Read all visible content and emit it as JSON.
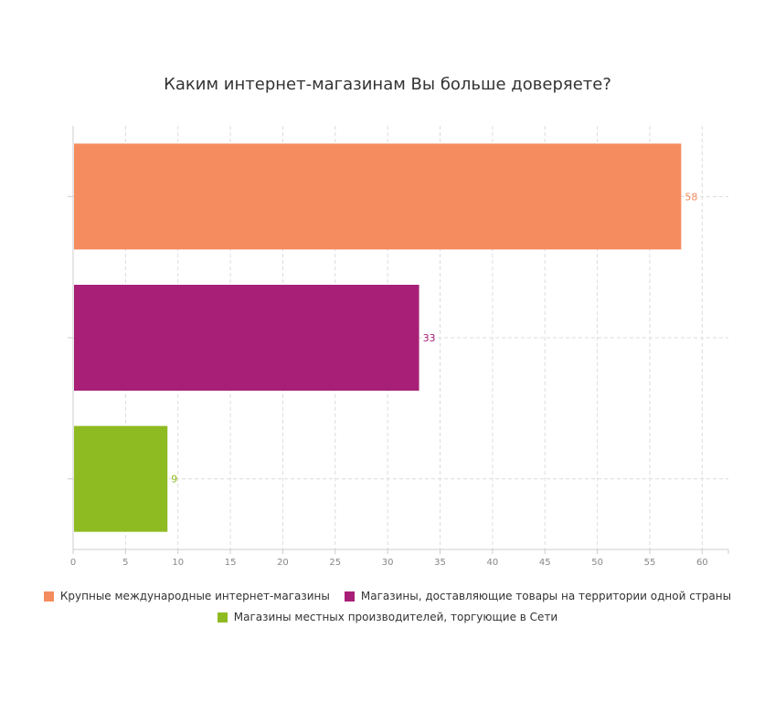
{
  "chart_data": {
    "type": "bar",
    "orientation": "horizontal",
    "title": "Каким интернет-магазинам Вы больше доверяете?",
    "xlim": [
      0,
      62.5
    ],
    "x_ticks": [
      0,
      5,
      10,
      15,
      20,
      25,
      30,
      35,
      40,
      45,
      50,
      55,
      60
    ],
    "grid": true,
    "legend_position": "bottom",
    "series": [
      {
        "name": "Крупные международные интернет-магазины",
        "value": 58,
        "color": "#f58c5f"
      },
      {
        "name": "Магазины, доставляющие товары на территории одной страны",
        "value": 33,
        "color": "#a71f76"
      },
      {
        "name": "Магазины местных производителей, торгующие в Сети",
        "value": 9,
        "color": "#8fbb22"
      }
    ]
  }
}
